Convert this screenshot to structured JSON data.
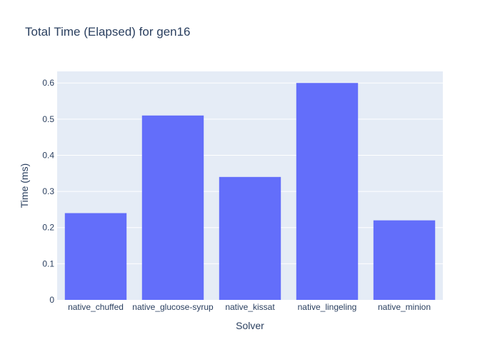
{
  "chart_data": {
    "type": "bar",
    "title": "Total Time (Elapsed) for gen16",
    "xlabel": "Solver",
    "ylabel": "Time (ms)",
    "categories": [
      "native_chuffed",
      "native_glucose-syrup",
      "native_kissat",
      "native_lingeling",
      "native_minion"
    ],
    "values": [
      0.24,
      0.51,
      0.34,
      0.6,
      0.22
    ],
    "ylim": [
      0,
      0.632
    ],
    "yticks": [
      "0",
      "0.1",
      "0.2",
      "0.3",
      "0.4",
      "0.5",
      "0.6"
    ],
    "grid": true,
    "colors": {
      "bar": "#636efa",
      "plot_bg": "#e5ecf6",
      "grid": "#ffffff",
      "text": "#2a3f5f"
    }
  }
}
